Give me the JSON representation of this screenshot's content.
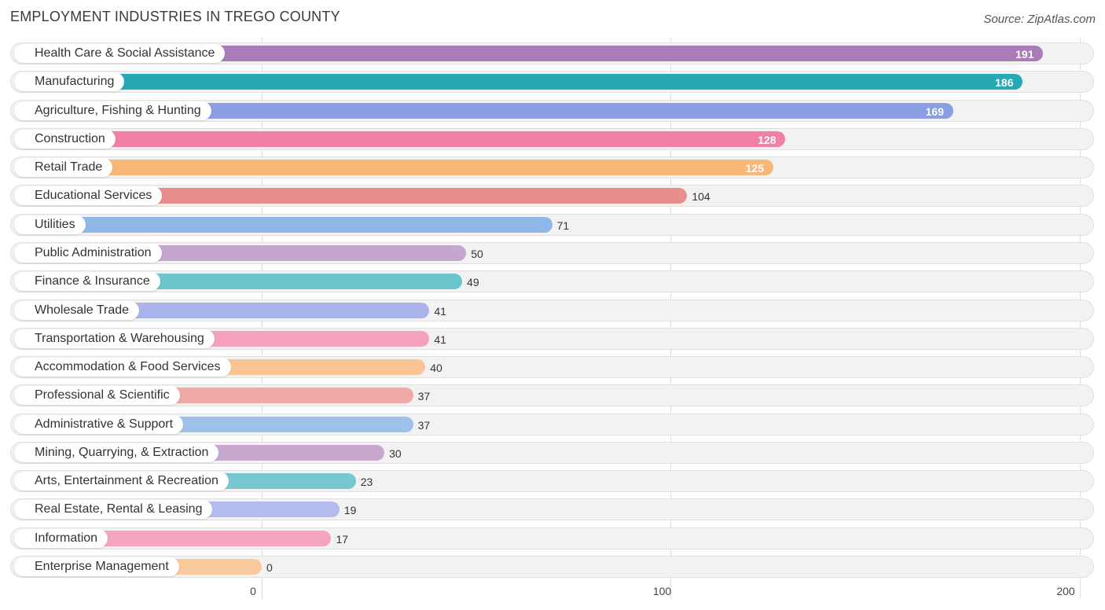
{
  "title": "EMPLOYMENT INDUSTRIES IN TREGO COUNTY",
  "source": "Source: ZipAtlas.com",
  "chart_data": {
    "type": "bar",
    "orientation": "horizontal",
    "title": "EMPLOYMENT INDUSTRIES IN TREGO COUNTY",
    "xlim": [
      0,
      200
    ],
    "xticks": [
      0,
      100,
      200
    ],
    "grid": true,
    "categories": [
      "Health Care & Social Assistance",
      "Manufacturing",
      "Agriculture, Fishing & Hunting",
      "Construction",
      "Retail Trade",
      "Educational Services",
      "Utilities",
      "Public Administration",
      "Finance & Insurance",
      "Wholesale Trade",
      "Transportation & Warehousing",
      "Accommodation & Food Services",
      "Professional & Scientific",
      "Administrative & Support",
      "Mining, Quarrying, & Extraction",
      "Arts, Entertainment & Recreation",
      "Real Estate, Rental & Leasing",
      "Information",
      "Enterprise Management"
    ],
    "values": [
      191,
      186,
      169,
      128,
      125,
      104,
      71,
      50,
      49,
      41,
      41,
      40,
      37,
      37,
      30,
      23,
      19,
      17,
      0
    ],
    "colors": [
      "#a97bb7",
      "#27a8b5",
      "#8b9de3",
      "#f27fa5",
      "#f9b777",
      "#e88e8e",
      "#8fb8e8",
      "#c5a6cf",
      "#6cc4cc",
      "#aab4ea",
      "#f5a0bd",
      "#f9c594",
      "#eea9a5",
      "#9ec1ea",
      "#c8a8cf",
      "#76c7ce",
      "#b4bbee",
      "#f5a3bf",
      "#f9c89b"
    ]
  }
}
